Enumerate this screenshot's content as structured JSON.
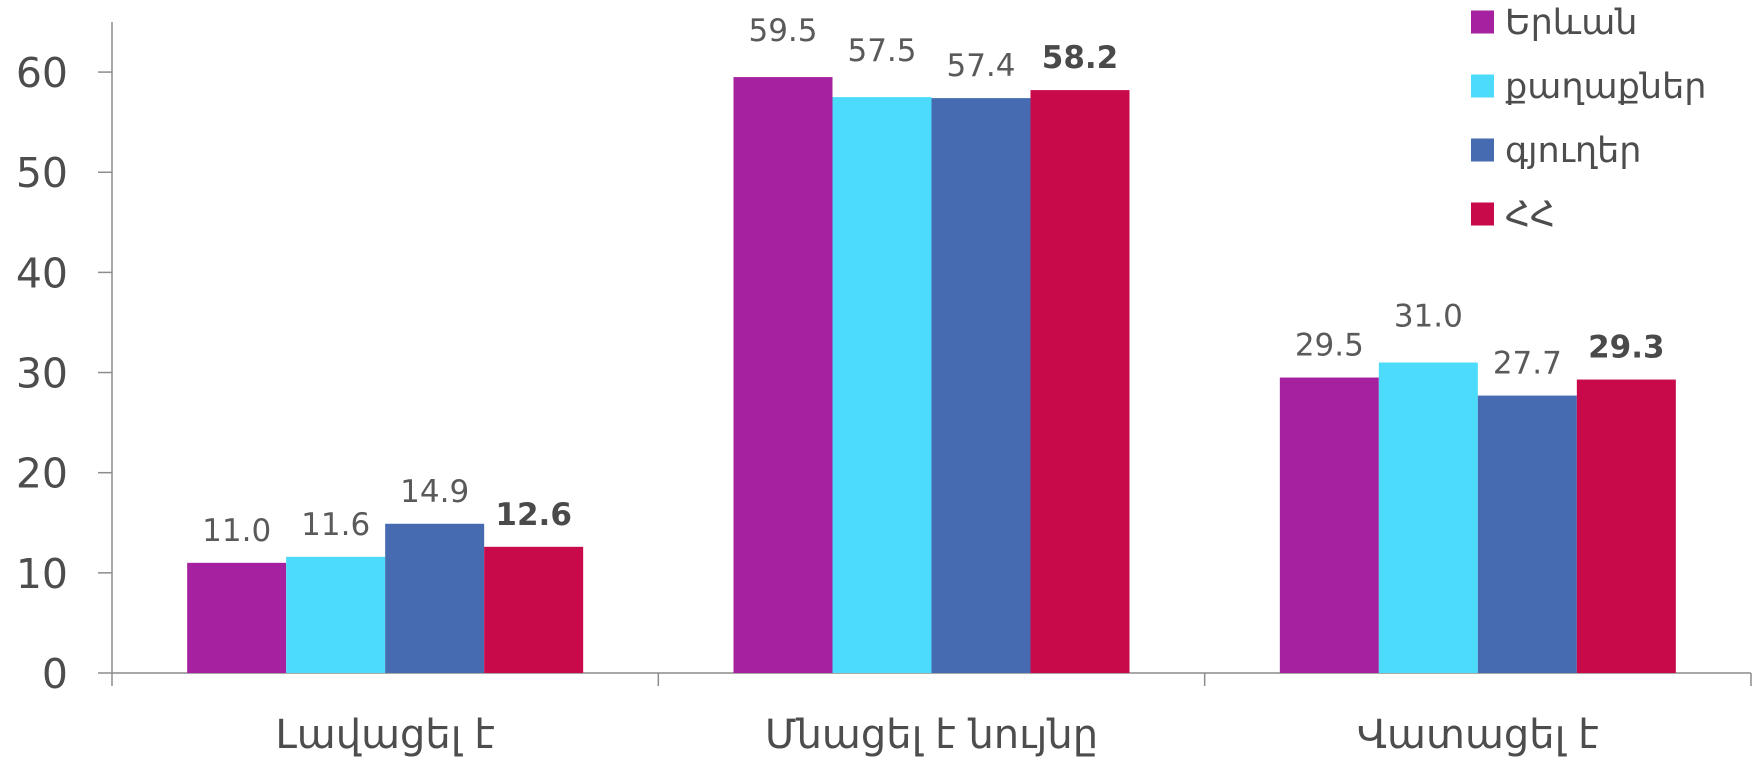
{
  "chart_data": {
    "type": "bar",
    "categories": [
      "Լավացել է",
      "Մնացել է նույնը",
      "Վատացել է"
    ],
    "series": [
      {
        "name": "Երևան",
        "values": [
          11.0,
          59.5,
          29.5
        ],
        "color": "#A6219F"
      },
      {
        "name": "քաղաքներ",
        "values": [
          11.6,
          57.5,
          31.0
        ],
        "color": "#4CDBFA"
      },
      {
        "name": "գյուղեր",
        "values": [
          14.9,
          57.4,
          27.7
        ],
        "color": "#466BB0"
      },
      {
        "name": "ՀՀ",
        "values": [
          12.6,
          58.2,
          29.3
        ],
        "color": "#C80A4B"
      }
    ],
    "yticks": [
      0,
      10,
      20,
      30,
      40,
      50,
      60
    ],
    "ylim": [
      0,
      65
    ],
    "xlabel": "",
    "ylabel": "",
    "grid": false,
    "legend": {
      "position": "top-right"
    },
    "axis_color": "#8C8C8C",
    "text_color": "#4D4D4D"
  }
}
